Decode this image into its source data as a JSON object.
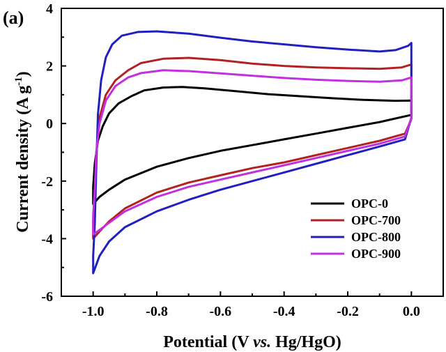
{
  "chart_data": {
    "type": "line",
    "panel_label": "(a)",
    "xlabel": {
      "prefix": "Potential (V ",
      "italic": "vs.",
      "suffix": " Hg/HgO)"
    },
    "ylabel": {
      "prefix": "Current density (A g",
      "sup": "-1",
      "suffix": ")"
    },
    "xlim": [
      -1.1,
      0.1
    ],
    "ylim": [
      -6,
      4
    ],
    "x_ticks": [
      {
        "value": -1.0,
        "label": "-1.0"
      },
      {
        "value": -0.8,
        "label": "-0.8"
      },
      {
        "value": -0.6,
        "label": "-0.6"
      },
      {
        "value": -0.4,
        "label": "-0.4"
      },
      {
        "value": -0.2,
        "label": "-0.2"
      },
      {
        "value": 0.0,
        "label": "0.0"
      }
    ],
    "y_ticks": [
      {
        "value": -6,
        "label": "-6"
      },
      {
        "value": -4,
        "label": "-4"
      },
      {
        "value": -2,
        "label": "-2"
      },
      {
        "value": 0,
        "label": "0"
      },
      {
        "value": 2,
        "label": "2"
      },
      {
        "value": 4,
        "label": "4"
      }
    ],
    "grid": false,
    "legend_position": "bottom-right",
    "series": [
      {
        "name": "OPC-0",
        "color": "#000000",
        "points": [
          [
            0.0,
            0.3
          ],
          [
            -0.1,
            0.05
          ],
          [
            -0.2,
            -0.15
          ],
          [
            -0.3,
            -0.35
          ],
          [
            -0.4,
            -0.55
          ],
          [
            -0.5,
            -0.75
          ],
          [
            -0.6,
            -0.95
          ],
          [
            -0.7,
            -1.2
          ],
          [
            -0.8,
            -1.5
          ],
          [
            -0.9,
            -1.95
          ],
          [
            -0.95,
            -2.3
          ],
          [
            -0.98,
            -2.55
          ],
          [
            -1.0,
            -2.8
          ],
          [
            -1.0,
            -2.2
          ],
          [
            -0.995,
            -1.4
          ],
          [
            -0.985,
            -0.6
          ],
          [
            -0.97,
            -0.1
          ],
          [
            -0.95,
            0.35
          ],
          [
            -0.92,
            0.7
          ],
          [
            -0.88,
            0.95
          ],
          [
            -0.84,
            1.15
          ],
          [
            -0.78,
            1.25
          ],
          [
            -0.72,
            1.27
          ],
          [
            -0.65,
            1.22
          ],
          [
            -0.55,
            1.12
          ],
          [
            -0.45,
            1.02
          ],
          [
            -0.35,
            0.95
          ],
          [
            -0.25,
            0.88
          ],
          [
            -0.15,
            0.82
          ],
          [
            -0.05,
            0.79
          ],
          [
            0.0,
            0.8
          ],
          [
            0.0,
            0.3
          ]
        ]
      },
      {
        "name": "OPC-700",
        "color": "#b22222",
        "points": [
          [
            0.0,
            0.15
          ],
          [
            -0.02,
            -0.35
          ],
          [
            -0.1,
            -0.6
          ],
          [
            -0.2,
            -0.85
          ],
          [
            -0.3,
            -1.1
          ],
          [
            -0.4,
            -1.35
          ],
          [
            -0.5,
            -1.55
          ],
          [
            -0.6,
            -1.8
          ],
          [
            -0.7,
            -2.05
          ],
          [
            -0.8,
            -2.4
          ],
          [
            -0.9,
            -2.95
          ],
          [
            -0.95,
            -3.4
          ],
          [
            -0.98,
            -3.75
          ],
          [
            -1.0,
            -4.0
          ],
          [
            -1.0,
            -3.4
          ],
          [
            -0.995,
            -2.5
          ],
          [
            -0.99,
            -1.0
          ],
          [
            -0.98,
            0.2
          ],
          [
            -0.96,
            1.0
          ],
          [
            -0.93,
            1.5
          ],
          [
            -0.89,
            1.85
          ],
          [
            -0.85,
            2.1
          ],
          [
            -0.78,
            2.25
          ],
          [
            -0.7,
            2.28
          ],
          [
            -0.6,
            2.2
          ],
          [
            -0.5,
            2.08
          ],
          [
            -0.4,
            2.0
          ],
          [
            -0.3,
            1.95
          ],
          [
            -0.2,
            1.92
          ],
          [
            -0.1,
            1.9
          ],
          [
            -0.03,
            1.95
          ],
          [
            0.0,
            2.05
          ],
          [
            0.0,
            0.15
          ]
        ]
      },
      {
        "name": "OPC-800",
        "color": "#2020c0",
        "points": [
          [
            0.0,
            0.2
          ],
          [
            -0.02,
            -0.55
          ],
          [
            -0.1,
            -0.8
          ],
          [
            -0.2,
            -1.1
          ],
          [
            -0.3,
            -1.4
          ],
          [
            -0.4,
            -1.7
          ],
          [
            -0.5,
            -2.0
          ],
          [
            -0.6,
            -2.3
          ],
          [
            -0.7,
            -2.65
          ],
          [
            -0.8,
            -3.05
          ],
          [
            -0.9,
            -3.6
          ],
          [
            -0.95,
            -4.1
          ],
          [
            -0.98,
            -4.6
          ],
          [
            -1.0,
            -5.2
          ],
          [
            -1.0,
            -4.6
          ],
          [
            -0.995,
            -3.5
          ],
          [
            -0.99,
            -1.5
          ],
          [
            -0.985,
            0.3
          ],
          [
            -0.975,
            1.5
          ],
          [
            -0.96,
            2.3
          ],
          [
            -0.94,
            2.75
          ],
          [
            -0.91,
            3.05
          ],
          [
            -0.86,
            3.18
          ],
          [
            -0.8,
            3.2
          ],
          [
            -0.7,
            3.12
          ],
          [
            -0.6,
            2.98
          ],
          [
            -0.5,
            2.85
          ],
          [
            -0.4,
            2.75
          ],
          [
            -0.3,
            2.65
          ],
          [
            -0.2,
            2.57
          ],
          [
            -0.1,
            2.5
          ],
          [
            -0.05,
            2.55
          ],
          [
            -0.01,
            2.7
          ],
          [
            0.0,
            2.8
          ],
          [
            0.0,
            0.2
          ]
        ]
      },
      {
        "name": "OPC-900",
        "color": "#c030e0",
        "points": [
          [
            0.0,
            0.2
          ],
          [
            -0.02,
            -0.45
          ],
          [
            -0.1,
            -0.7
          ],
          [
            -0.2,
            -0.95
          ],
          [
            -0.3,
            -1.2
          ],
          [
            -0.4,
            -1.45
          ],
          [
            -0.5,
            -1.7
          ],
          [
            -0.6,
            -1.95
          ],
          [
            -0.7,
            -2.2
          ],
          [
            -0.8,
            -2.55
          ],
          [
            -0.9,
            -3.05
          ],
          [
            -0.95,
            -3.45
          ],
          [
            -0.98,
            -3.7
          ],
          [
            -1.0,
            -3.85
          ],
          [
            -1.0,
            -3.2
          ],
          [
            -0.995,
            -2.3
          ],
          [
            -0.99,
            -1.0
          ],
          [
            -0.98,
            0.0
          ],
          [
            -0.96,
            0.8
          ],
          [
            -0.93,
            1.3
          ],
          [
            -0.89,
            1.6
          ],
          [
            -0.85,
            1.75
          ],
          [
            -0.78,
            1.85
          ],
          [
            -0.7,
            1.82
          ],
          [
            -0.6,
            1.74
          ],
          [
            -0.5,
            1.66
          ],
          [
            -0.4,
            1.58
          ],
          [
            -0.3,
            1.52
          ],
          [
            -0.2,
            1.48
          ],
          [
            -0.1,
            1.45
          ],
          [
            -0.03,
            1.5
          ],
          [
            0.0,
            1.6
          ],
          [
            0.0,
            0.2
          ]
        ]
      }
    ]
  }
}
